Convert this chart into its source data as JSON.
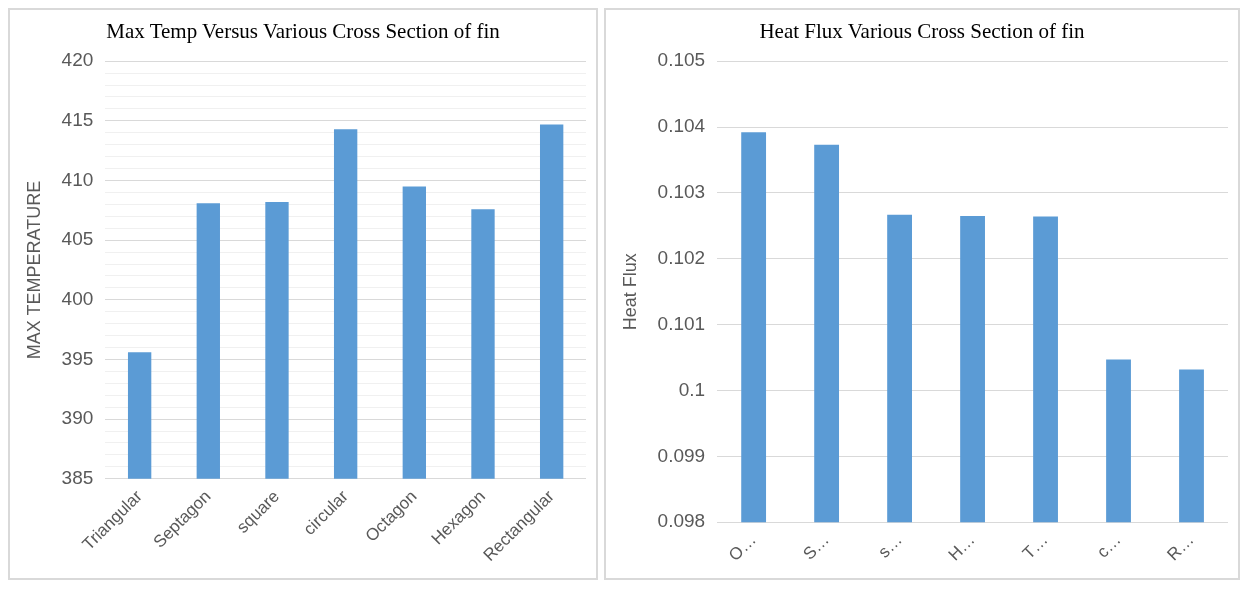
{
  "chart_data": [
    {
      "type": "bar",
      "title": "Max Temp Versus Various Cross Section of fin",
      "ylabel": "MAX TEMPERATURE",
      "categories": [
        "Triangular",
        "Septagon",
        "square",
        "circular",
        "Octagon",
        "Hexagon",
        "Rectangular"
      ],
      "values": [
        395.6,
        408.1,
        408.2,
        414.3,
        409.5,
        407.6,
        414.7
      ],
      "color": "#5b9bd5",
      "ylim": [
        385,
        420
      ],
      "yticks": [
        385,
        {
          "value": 386,
          "label": null
        },
        {
          "value": 387,
          "label": null
        },
        {
          "value": 388,
          "label": null
        },
        {
          "value": 389,
          "label": null
        },
        390,
        {
          "value": 391,
          "label": null
        },
        {
          "value": 392,
          "label": null
        },
        {
          "value": 393,
          "label": null
        },
        {
          "value": 394,
          "label": null
        },
        395,
        {
          "value": 396,
          "label": null
        },
        {
          "value": 397,
          "label": null
        },
        {
          "value": 398,
          "label": null
        },
        {
          "value": 399,
          "label": null
        },
        400,
        {
          "value": 401,
          "label": null
        },
        {
          "value": 402,
          "label": null
        },
        {
          "value": 403,
          "label": null
        },
        {
          "value": 404,
          "label": null
        },
        405,
        {
          "value": 406,
          "label": null
        },
        {
          "value": 407,
          "label": null
        },
        {
          "value": 408,
          "label": null
        },
        {
          "value": 409,
          "label": null
        },
        410,
        {
          "value": 411,
          "label": null
        },
        {
          "value": 412,
          "label": null
        },
        {
          "value": 413,
          "label": null
        },
        {
          "value": 414,
          "label": null
        },
        415,
        {
          "value": 416,
          "label": null
        },
        {
          "value": 417,
          "label": null
        },
        {
          "value": 418,
          "label": null
        },
        {
          "value": 419,
          "label": null
        },
        420
      ],
      "grid": "y",
      "legend": false
    },
    {
      "type": "bar",
      "title": "Heat Flux Various Cross Section of fin",
      "ylabel": "Heat Flux",
      "categories": [
        "O…",
        "S…",
        "s…",
        "H…",
        "T…",
        "c…",
        "R…"
      ],
      "values": [
        0.10392,
        0.10373,
        0.10267,
        0.10265,
        0.10264,
        0.10047,
        0.10032
      ],
      "color": "#5b9bd5",
      "ylim": [
        0.098,
        0.105
      ],
      "yticks": [
        {
          "value": 0.098,
          "label": "0.098"
        },
        {
          "value": 0.099,
          "label": "0.099"
        },
        {
          "value": 0.1,
          "label": "0.1"
        },
        {
          "value": 0.101,
          "label": "0.101"
        },
        {
          "value": 0.102,
          "label": "0.102"
        },
        {
          "value": 0.103,
          "label": "0.103"
        },
        {
          "value": 0.104,
          "label": "0.104"
        },
        {
          "value": 0.105,
          "label": "0.105"
        }
      ],
      "grid": "y",
      "legend": false
    }
  ]
}
